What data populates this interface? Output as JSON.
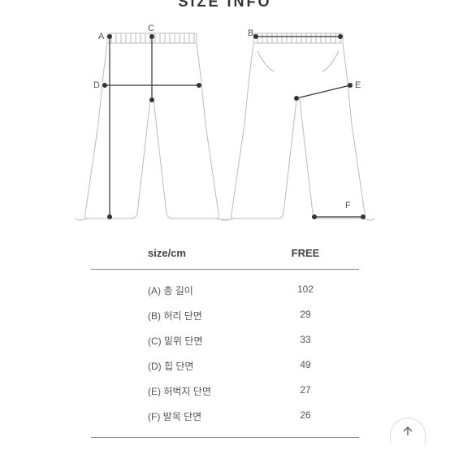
{
  "title": "SIZE INFO",
  "diagram": {
    "stroke": "#bbbbbb",
    "accent": "#333333",
    "bg": "#ffffff",
    "labels": {
      "A": "A",
      "B": "B",
      "C": "C",
      "D": "D",
      "E": "E",
      "F": "F"
    }
  },
  "table": {
    "header_label": "size/cm",
    "header_value": "FREE",
    "rows": [
      {
        "label": "(A) 총 길이",
        "value": "102"
      },
      {
        "label": "(B) 허리 단면",
        "value": "29"
      },
      {
        "label": "(C) 밑위 단면",
        "value": "33"
      },
      {
        "label": "(D) 힙 단면",
        "value": "49"
      },
      {
        "label": "(E) 허벅지 단면",
        "value": "27"
      },
      {
        "label": "(F) 발목 단면",
        "value": "26"
      }
    ]
  }
}
